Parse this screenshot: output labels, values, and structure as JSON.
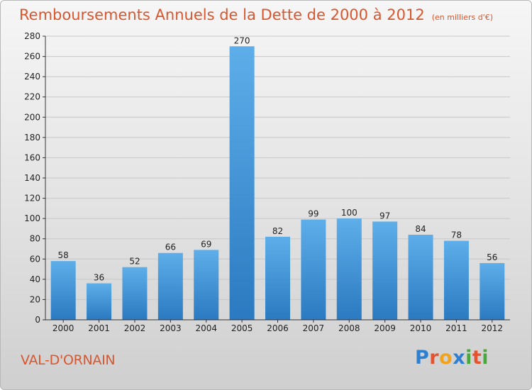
{
  "title": "Remboursements Annuels de la Dette de 2000 à 2012",
  "subtitle": "(en milliers d'€)",
  "town": "VAL-D'ORNAIN",
  "logo": {
    "letters": [
      "P",
      "r",
      "o",
      "x",
      "i",
      "t",
      "i"
    ],
    "colors": [
      "#2f7fd0",
      "#e8532f",
      "#f2a21b",
      "#2f7fd0",
      "#49a83b",
      "#e8532f",
      "#49a83b"
    ]
  },
  "colors": {
    "bar_top": "#5eaeea",
    "bar_bottom": "#2b79c0",
    "grid": "#c8c8c8",
    "axis": "#333333",
    "text": "#222222",
    "title": "#d9562e"
  },
  "chart_data": {
    "type": "bar",
    "categories": [
      "2000",
      "2001",
      "2002",
      "2003",
      "2004",
      "2005",
      "2006",
      "2007",
      "2008",
      "2009",
      "2010",
      "2011",
      "2012"
    ],
    "values": [
      58,
      36,
      52,
      66,
      69,
      270,
      82,
      99,
      100,
      97,
      84,
      78,
      56
    ],
    "title": "Remboursements Annuels de la Dette de 2000 à 2012",
    "xlabel": "",
    "ylabel": "",
    "ylim": [
      0,
      280
    ],
    "yticks": [
      0,
      20,
      40,
      60,
      80,
      100,
      120,
      140,
      160,
      180,
      200,
      220,
      240,
      260,
      280
    ],
    "grid": true,
    "data_labels": true
  }
}
